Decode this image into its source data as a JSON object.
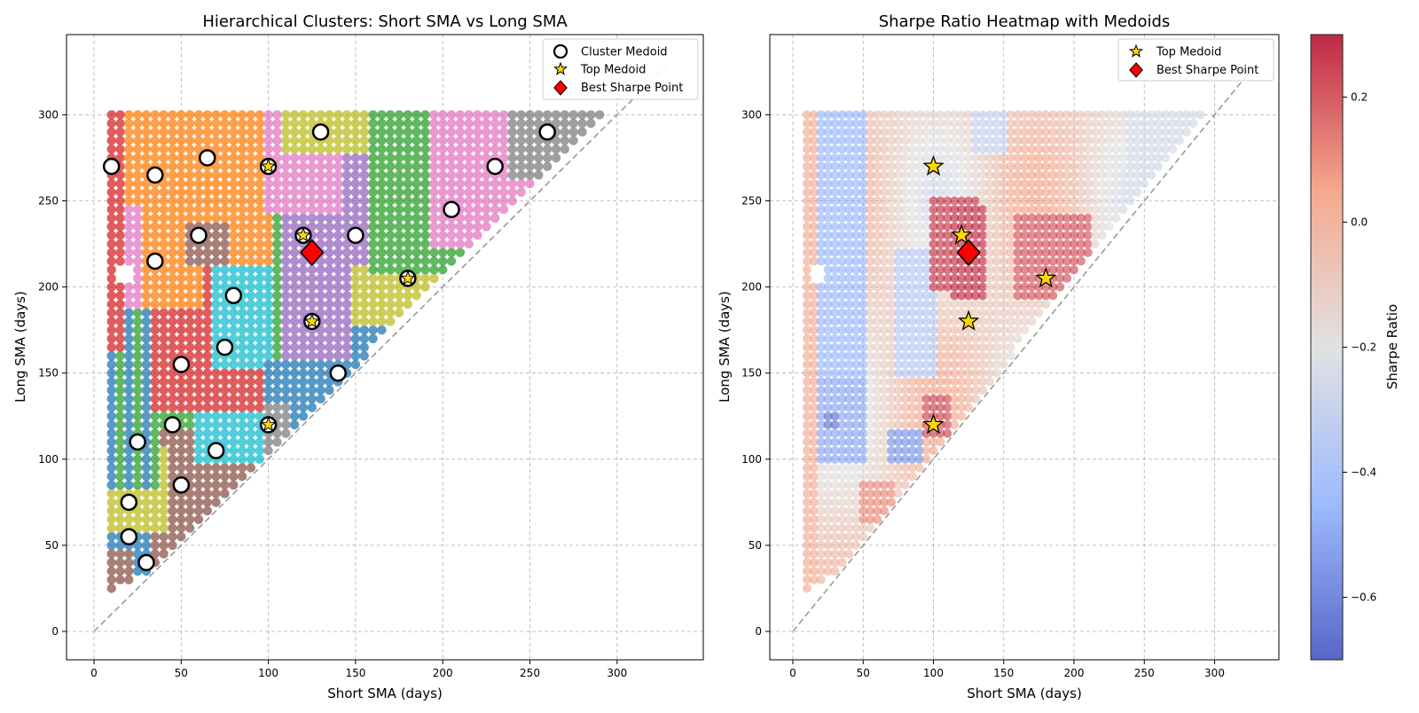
{
  "chart_data": [
    {
      "type": "scatter",
      "title": "Hierarchical Clusters: Short SMA vs Long SMA",
      "xlabel": "Short SMA (days)",
      "ylabel": "Long SMA (days)",
      "xlim": [
        -16,
        346
      ],
      "ylim": [
        -16,
        346
      ],
      "xticks": [
        "0",
        "50",
        "100",
        "150",
        "200",
        "250",
        "300"
      ],
      "yticks": [
        "0",
        "50",
        "100",
        "150",
        "200",
        "250",
        "300"
      ],
      "grid": true,
      "legend_position": "top-right",
      "diagonal": [
        [
          0,
          0
        ],
        [
          330,
          330
        ]
      ],
      "legend": [
        "Cluster Medoid",
        "Top Medoid",
        "Best Sharpe Point"
      ],
      "grid_points": {
        "short_range": [
          10,
          290
        ],
        "short_step": 5,
        "long_range": [
          25,
          300
        ],
        "long_step": 5,
        "rule": "long > short"
      },
      "clusters": [
        {
          "color": "#d62728",
          "region": "Short 10–15 / Long 165–300; Short 35–55 / Long 130–205; Short 70–110 / Long 125–175"
        },
        {
          "color": "#ff7f0e",
          "region": "Short 15–100 / Long 200–300"
        },
        {
          "color": "#1f77b4",
          "region": "Short 10–35 / Long 40–200; Short 100–155 / Long 120–160; Short 125–200 / Long 135–185"
        },
        {
          "color": "#2ca02c",
          "region": "Short 10–35 / Long 85–200; Short 40–110 / Long 120–150; Short 160–225 / Long 215–270"
        },
        {
          "color": "#8c564b",
          "region": "Short 10–30 / Long 25–50; Short 30–65 / Long 50–90; Short 55–100 / Long 215–265"
        },
        {
          "color": "#e377c2",
          "region": "Short 10–60 / Long 190–260; Short 100–140 / Long 245–280; Short 195–260 / Long 230–300"
        },
        {
          "color": "#7f7f7f",
          "region": "Short 240–290 / Long 270–300; Short 90–110 / Long 115–135"
        },
        {
          "color": "#bcbd22",
          "region": "Short 10–40 / Long 60–110; Short 110–160 / Long 280–300; Short 150–200 / Long 175–215"
        },
        {
          "color": "#9467bd",
          "region": "Short 110–175 / Long 160–260"
        },
        {
          "color": "#17becf",
          "region": "Short 60–110 / Long 100–230"
        }
      ],
      "cluster_medoids": [
        [
          10,
          270
        ],
        [
          35,
          265
        ],
        [
          65,
          275
        ],
        [
          100,
          270
        ],
        [
          130,
          290
        ],
        [
          260,
          290
        ],
        [
          230,
          270
        ],
        [
          205,
          245
        ],
        [
          150,
          230
        ],
        [
          120,
          230
        ],
        [
          60,
          230
        ],
        [
          35,
          215
        ],
        [
          80,
          195
        ],
        [
          180,
          205
        ],
        [
          125,
          180
        ],
        [
          75,
          165
        ],
        [
          50,
          155
        ],
        [
          140,
          150
        ],
        [
          45,
          120
        ],
        [
          100,
          120
        ],
        [
          25,
          110
        ],
        [
          70,
          105
        ],
        [
          50,
          85
        ],
        [
          20,
          75
        ],
        [
          20,
          55
        ],
        [
          30,
          40
        ]
      ],
      "top_medoids": [
        [
          100,
          270
        ],
        [
          120,
          230
        ],
        [
          180,
          205
        ],
        [
          125,
          180
        ],
        [
          100,
          120
        ]
      ],
      "best_sharpe_point": [
        125,
        220
      ]
    },
    {
      "type": "heatmap",
      "title": "Sharpe Ratio Heatmap with Medoids",
      "xlabel": "Short SMA (days)",
      "ylabel": "Long SMA (days)",
      "xlim": [
        -16,
        346
      ],
      "ylim": [
        -16,
        346
      ],
      "xticks": [
        "0",
        "50",
        "100",
        "150",
        "200",
        "250",
        "300"
      ],
      "yticks": [
        "0",
        "50",
        "100",
        "150",
        "200",
        "250",
        "300"
      ],
      "grid": true,
      "legend_position": "top-right",
      "legend": [
        "Top Medoid",
        "Best Sharpe Point"
      ],
      "colorbar": {
        "label": "Sharpe Ratio",
        "colormap": "coolwarm",
        "range": [
          -0.7,
          0.3
        ],
        "ticks": [
          "0.2",
          "0.0",
          "−0.2",
          "−0.4",
          "−0.6"
        ],
        "tick_values": [
          0.2,
          0.0,
          -0.2,
          -0.4,
          -0.6
        ]
      },
      "sharpe_pattern": [
        {
          "short": [
            10,
            15
          ],
          "long": [
            25,
            300
          ],
          "sharpe": 0.02
        },
        {
          "short": [
            20,
            50
          ],
          "long": [
            150,
            300
          ],
          "sharpe": -0.45
        },
        {
          "short": [
            20,
            50
          ],
          "long": [
            100,
            145
          ],
          "sharpe": -0.5
        },
        {
          "short": [
            25,
            30
          ],
          "long": [
            120,
            125
          ],
          "sharpe": -0.65
        },
        {
          "short": [
            50,
            70
          ],
          "long": [
            65,
            85
          ],
          "sharpe": 0.1
        },
        {
          "short": [
            70,
            90
          ],
          "long": [
            100,
            115
          ],
          "sharpe": -0.55
        },
        {
          "short": [
            75,
            100
          ],
          "long": [
            150,
            220
          ],
          "sharpe": -0.35
        },
        {
          "short": [
            100,
            130
          ],
          "long": [
            200,
            250
          ],
          "sharpe": 0.25
        },
        {
          "short": [
            115,
            135
          ],
          "long": [
            195,
            245
          ],
          "sharpe": 0.28
        },
        {
          "short": [
            95,
            110
          ],
          "long": [
            115,
            135
          ],
          "sharpe": 0.22
        },
        {
          "short": [
            130,
            150
          ],
          "long": [
            280,
            300
          ],
          "sharpe": -0.3
        },
        {
          "short": [
            160,
            210
          ],
          "long": [
            195,
            240
          ],
          "sharpe": 0.2
        },
        {
          "short": [
            240,
            290
          ],
          "long": [
            260,
            300
          ],
          "sharpe": -0.25
        }
      ],
      "top_medoids": [
        [
          100,
          270
        ],
        [
          120,
          230
        ],
        [
          180,
          205
        ],
        [
          125,
          180
        ],
        [
          100,
          120
        ]
      ],
      "best_sharpe_point": [
        125,
        220
      ],
      "diagonal": [
        [
          0,
          0
        ],
        [
          330,
          330
        ]
      ]
    }
  ]
}
